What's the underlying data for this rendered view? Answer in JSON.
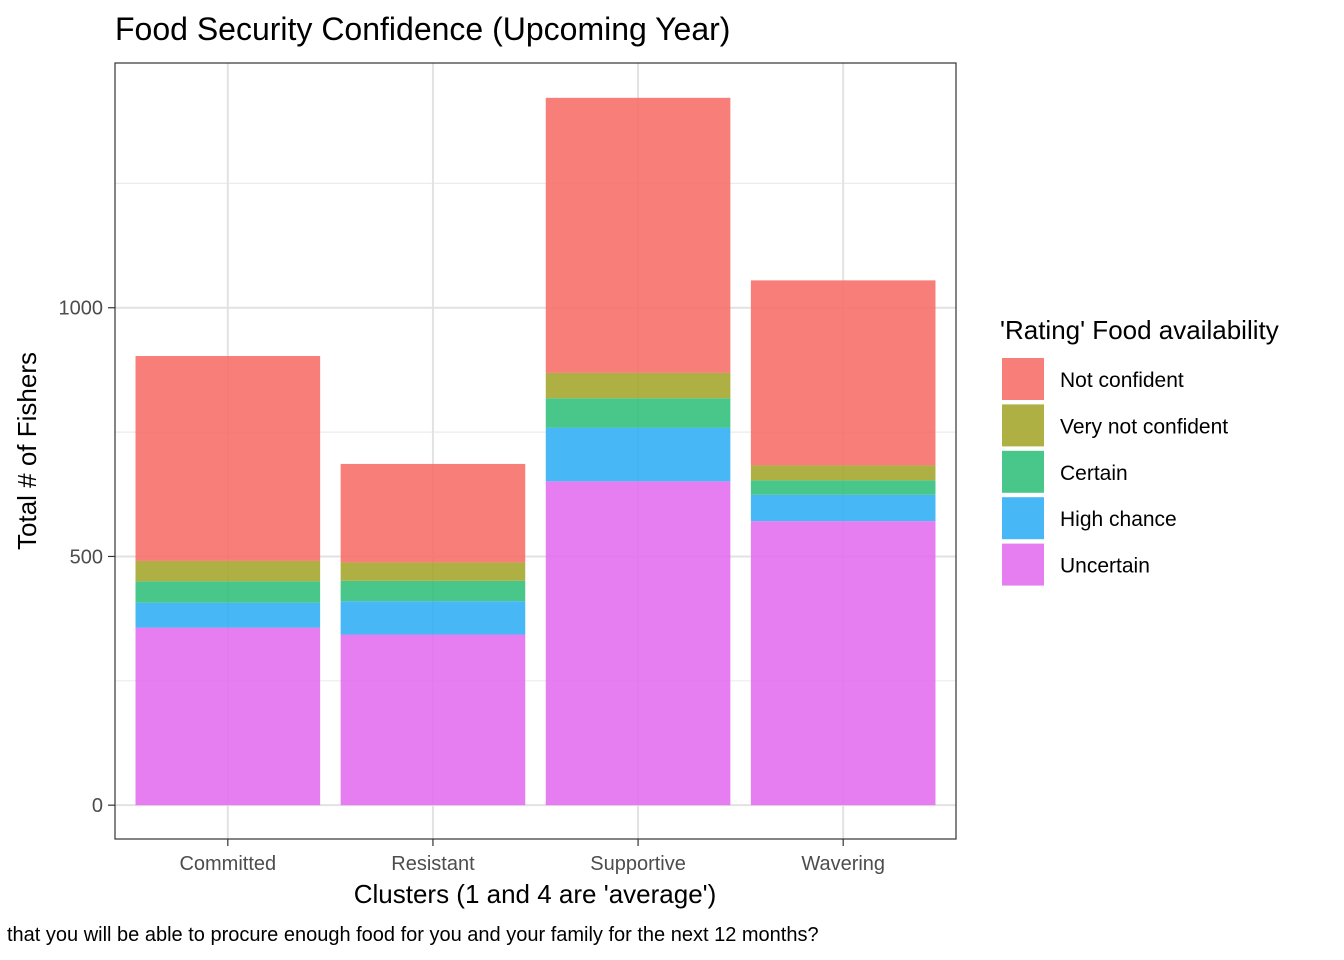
{
  "chart_data": {
    "type": "bar",
    "stacked": true,
    "title": "Food Security Confidence (Upcoming Year)",
    "xlabel": "Clusters (1 and 4 are 'average')",
    "ylabel": "Total # of Fishers",
    "caption": "that you will be able to procure enough food for you and your family for the next 12 months?",
    "categories": [
      "Committed",
      "Resistant",
      "Supportive",
      "Wavering"
    ],
    "ylim": [
      -68,
      1492
    ],
    "yticks": [
      0,
      500,
      1000
    ],
    "yticks_minor": [
      250,
      750,
      1250
    ],
    "grid": true,
    "legend_title": "'Rating' Food availability",
    "legend_position": "right",
    "series": [
      {
        "name": "Uncertain",
        "color": "#E36CF0",
        "values": [
          357,
          343,
          651,
          571
        ]
      },
      {
        "name": "High chance",
        "color": "#2EADF4",
        "values": [
          50,
          67,
          108,
          53
        ]
      },
      {
        "name": "Certain",
        "color": "#30BF7A",
        "values": [
          43,
          41,
          59,
          29
        ]
      },
      {
        "name": "Very not confident",
        "color": "#A3A52A",
        "values": [
          41,
          37,
          51,
          30
        ]
      },
      {
        "name": "Not confident",
        "color": "#F76C68",
        "values": [
          412,
          198,
          553,
          372
        ]
      }
    ],
    "legend_order": [
      "Not confident",
      "Very not confident",
      "Certain",
      "High chance",
      "Uncertain"
    ]
  }
}
